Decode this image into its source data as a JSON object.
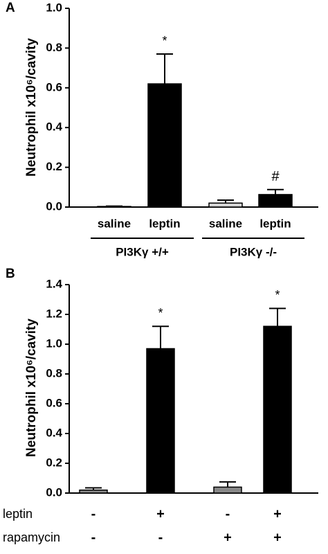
{
  "chart_data": [
    {
      "type": "bar",
      "panel": "A",
      "y_label": "Neutrophil x10⁶/cavity",
      "categories": [
        "saline",
        "leptin",
        "saline",
        "leptin"
      ],
      "groups": [
        {
          "label": "PI3Kγ +/+",
          "size": 2
        },
        {
          "label": "PI3Kγ -/-",
          "size": 2
        }
      ],
      "values": [
        0.003,
        0.62,
        0.02,
        0.063
      ],
      "errors": [
        0.002,
        0.15,
        0.015,
        0.025
      ],
      "colors": [
        "#d4d4d4",
        "#000000",
        "#d4d4d4",
        "#000000"
      ],
      "significance": [
        null,
        "*",
        null,
        "#"
      ],
      "ylim": [
        0,
        1.0
      ],
      "yticks": [
        {
          "value": 0,
          "label": "0.0"
        },
        0.2,
        0.4,
        0.6,
        0.8,
        {
          "value": 1.0,
          "label": "1.0"
        }
      ]
    },
    {
      "type": "bar",
      "panel": "B",
      "y_label": "Neutrophil x10⁶/cavity",
      "values": [
        0.02,
        0.97,
        0.04,
        1.12
      ],
      "errors": [
        0.015,
        0.15,
        0.035,
        0.12
      ],
      "colors": [
        "#888888",
        "#000000",
        "#888888",
        "#000000"
      ],
      "significance": [
        null,
        "*",
        null,
        "*"
      ],
      "conditions": [
        {
          "label": "leptin",
          "values": [
            "-",
            "+",
            "-",
            "+"
          ]
        },
        {
          "label": "rapamycin",
          "values": [
            "-",
            "-",
            "+",
            "+"
          ]
        }
      ],
      "ylim": [
        0,
        1.4
      ],
      "yticks": [
        {
          "value": 0,
          "label": "0.0"
        },
        0.2,
        0.4,
        0.6,
        0.8,
        {
          "value": 1.0,
          "label": "1.0"
        },
        1.2,
        1.4
      ]
    }
  ]
}
